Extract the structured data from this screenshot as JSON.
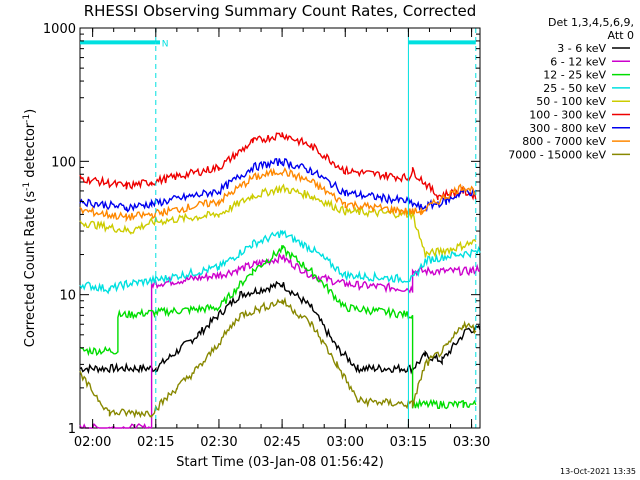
{
  "chart_data": {
    "type": "line",
    "title": "RHESSI Observing Summary Count Rates, Corrected",
    "ylabel_parts": [
      "Corrected Count Rate (s",
      "-1",
      " detector",
      "-1",
      ")"
    ],
    "xlabel": "Start Time (03-Jan-08 01:56:42)",
    "footer": "13-Oct-2021 13:35",
    "y_scale": "log",
    "ylim": [
      1,
      1000
    ],
    "y_ticks": [
      {
        "value": 1,
        "label": "1"
      },
      {
        "value": 10,
        "label": "10"
      },
      {
        "value": 100,
        "label": "100"
      },
      {
        "value": 1000,
        "label": "1000"
      }
    ],
    "xlim_minutes": [
      117,
      212
    ],
    "x_ticks": [
      {
        "minute": 120,
        "label": "02:00"
      },
      {
        "minute": 135,
        "label": "02:15"
      },
      {
        "minute": 150,
        "label": "02:30"
      },
      {
        "minute": 165,
        "label": "02:45"
      },
      {
        "minute": 180,
        "label": "03:00"
      },
      {
        "minute": 195,
        "label": "03:15"
      },
      {
        "minute": 210,
        "label": "03:30"
      }
    ],
    "legend_header": [
      "Det 1,3,4,5,6,9,",
      "Att 0"
    ],
    "legend_placement": "right",
    "series": [
      {
        "name": "3 - 6 keV",
        "color": "#000000",
        "points": [
          [
            117,
            2.8
          ],
          [
            135,
            2.8
          ],
          [
            145,
            5
          ],
          [
            155,
            10
          ],
          [
            165,
            12
          ],
          [
            172,
            8
          ],
          [
            178,
            4
          ],
          [
            183,
            2.8
          ],
          [
            196,
            2.8
          ],
          [
            199,
            3.5
          ],
          [
            203,
            3.2
          ],
          [
            209,
            5.5
          ],
          [
            212,
            5.5
          ]
        ]
      },
      {
        "name": "6 - 12 keV",
        "color": "#cc00cc",
        "points": [
          [
            117,
            1
          ],
          [
            134,
            1
          ],
          [
            134,
            12
          ],
          [
            150,
            14
          ],
          [
            159,
            17
          ],
          [
            165,
            19
          ],
          [
            172,
            14
          ],
          [
            180,
            12
          ],
          [
            196,
            11
          ],
          [
            196,
            15
          ],
          [
            210,
            15
          ],
          [
            212,
            16
          ]
        ]
      },
      {
        "name": "12 - 25 keV",
        "color": "#00dd00",
        "points": [
          [
            117,
            3.8
          ],
          [
            126,
            3.8
          ],
          [
            126,
            7
          ],
          [
            150,
            8
          ],
          [
            158,
            15
          ],
          [
            165,
            22
          ],
          [
            172,
            15
          ],
          [
            180,
            8
          ],
          [
            196,
            7
          ],
          [
            196,
            1.5
          ],
          [
            208,
            1.5
          ],
          [
            211,
            1.5
          ]
        ]
      },
      {
        "name": "25 - 50 keV",
        "color": "#00e0e0",
        "points": [
          [
            117,
            12
          ],
          [
            124,
            11
          ],
          [
            128,
            12
          ],
          [
            136,
            13
          ],
          [
            150,
            16
          ],
          [
            158,
            24
          ],
          [
            165,
            29
          ],
          [
            172,
            22
          ],
          [
            180,
            14
          ],
          [
            196,
            13
          ],
          [
            199,
            18
          ],
          [
            206,
            20
          ],
          [
            212,
            21
          ]
        ]
      },
      {
        "name": "50 - 100 keV",
        "color": "#cccc00",
        "points": [
          [
            117,
            35
          ],
          [
            129,
            30
          ],
          [
            134,
            35
          ],
          [
            150,
            40
          ],
          [
            158,
            55
          ],
          [
            165,
            63
          ],
          [
            172,
            55
          ],
          [
            180,
            42
          ],
          [
            196,
            40
          ],
          [
            199,
            20
          ],
          [
            205,
            22
          ],
          [
            211,
            25
          ]
        ]
      },
      {
        "name": "100 - 300 keV",
        "color": "#ee0000",
        "points": [
          [
            117,
            75
          ],
          [
            128,
            65
          ],
          [
            134,
            70
          ],
          [
            150,
            90
          ],
          [
            158,
            140
          ],
          [
            165,
            160
          ],
          [
            172,
            130
          ],
          [
            180,
            85
          ],
          [
            195,
            75
          ],
          [
            196,
            85
          ],
          [
            202,
            55
          ],
          [
            208,
            60
          ],
          [
            211,
            55
          ]
        ]
      },
      {
        "name": "300 - 800 keV",
        "color": "#0000ee",
        "points": [
          [
            117,
            50
          ],
          [
            128,
            45
          ],
          [
            134,
            48
          ],
          [
            150,
            60
          ],
          [
            158,
            90
          ],
          [
            165,
            100
          ],
          [
            172,
            85
          ],
          [
            180,
            58
          ],
          [
            195,
            50
          ],
          [
            198,
            45
          ],
          [
            204,
            50
          ],
          [
            208,
            60
          ],
          [
            211,
            58
          ]
        ]
      },
      {
        "name": "800 - 7000 keV",
        "color": "#ff8800",
        "points": [
          [
            117,
            43
          ],
          [
            128,
            38
          ],
          [
            134,
            40
          ],
          [
            150,
            50
          ],
          [
            158,
            75
          ],
          [
            165,
            85
          ],
          [
            172,
            70
          ],
          [
            180,
            48
          ],
          [
            195,
            42
          ],
          [
            198,
            42
          ],
          [
            204,
            55
          ],
          [
            208,
            65
          ],
          [
            211,
            60
          ]
        ]
      },
      {
        "name": "7000 - 15000 keV",
        "color": "#888800",
        "points": [
          [
            117,
            2.5
          ],
          [
            124,
            1.3
          ],
          [
            134,
            1.3
          ],
          [
            140,
            2
          ],
          [
            146,
            3
          ],
          [
            155,
            7
          ],
          [
            165,
            9
          ],
          [
            172,
            6
          ],
          [
            178,
            3
          ],
          [
            183,
            1.6
          ],
          [
            196,
            1.5
          ],
          [
            199,
            3
          ],
          [
            204,
            4
          ],
          [
            208,
            6
          ],
          [
            211,
            5.5
          ]
        ]
      }
    ],
    "flags": [
      {
        "label": "",
        "y": 780,
        "x_start": 117,
        "x_end": 135
      },
      {
        "label": "N",
        "y": 780,
        "x_start": 135,
        "x_end": 136
      },
      {
        "label": "",
        "y": 780,
        "x_start": 195,
        "x_end": 211
      }
    ],
    "vlines": [
      {
        "minute": 135,
        "style": "dashed"
      },
      {
        "minute": 195,
        "style": "solid"
      },
      {
        "minute": 211,
        "style": "dashed"
      }
    ]
  }
}
